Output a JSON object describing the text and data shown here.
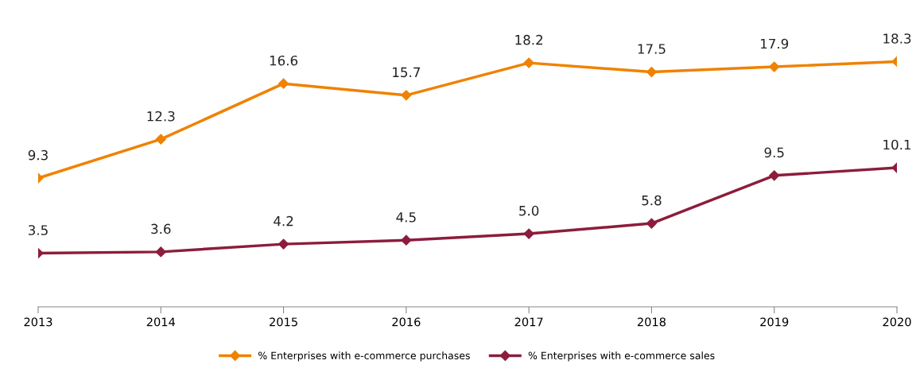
{
  "chart_data": {
    "type": "line",
    "categories": [
      "2013",
      "2014",
      "2015",
      "2016",
      "2017",
      "2018",
      "2019",
      "2020"
    ],
    "series": [
      {
        "name": "% Enterprises with e-commerce purchases",
        "color": "#ef8200",
        "values": [
          9.3,
          12.3,
          16.6,
          15.7,
          18.2,
          17.5,
          17.9,
          18.3
        ],
        "value_labels": [
          "9.3",
          "12.3",
          "16.6",
          "15.7",
          "18.2",
          "17.5",
          "17.9",
          "18.3"
        ]
      },
      {
        "name": "% Enterprises with e-commerce sales",
        "color": "#8c1d3c",
        "values": [
          3.5,
          3.6,
          4.2,
          4.5,
          5.0,
          5.8,
          9.5,
          10.1
        ],
        "value_labels": [
          "3.5",
          "3.6",
          "4.2",
          "4.5",
          "5.0",
          "5.8",
          "9.5",
          "10.1"
        ]
      }
    ],
    "legend": "bottom",
    "marker": "diamond",
    "line_style": "solid",
    "grid": false,
    "tick_labels": "x"
  }
}
